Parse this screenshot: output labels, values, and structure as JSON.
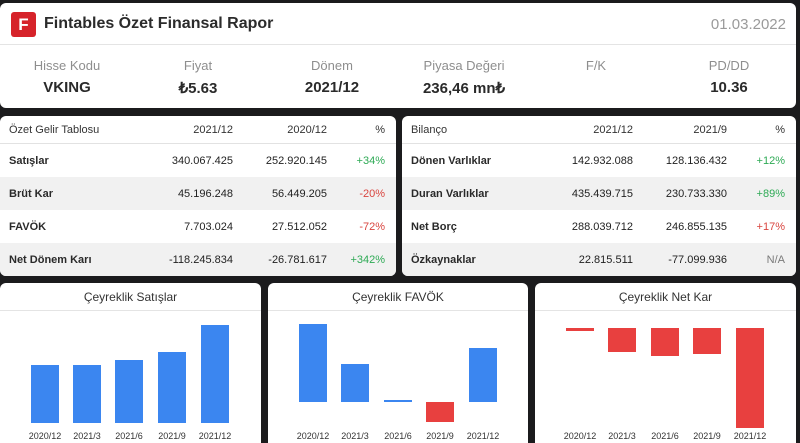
{
  "header": {
    "logo_letter": "F",
    "title": "Fintables Özet Finansal Rapor",
    "date": "01.03.2022",
    "kpis": [
      {
        "label": "Hisse Kodu",
        "value": "VKING"
      },
      {
        "label": "Fiyat",
        "value": "₺5.63"
      },
      {
        "label": "Dönem",
        "value": "2021/12"
      },
      {
        "label": "Piyasa Değeri",
        "value": "236,46 mn₺"
      },
      {
        "label": "F/K",
        "value": ""
      },
      {
        "label": "PD/DD",
        "value": "10.36"
      }
    ]
  },
  "income": {
    "headers": [
      "Özet Gelir Tablosu",
      "2021/12",
      "2020/12",
      "%"
    ],
    "rows": [
      {
        "label": "Satışlar",
        "a": "340.067.425",
        "b": "252.920.145",
        "pct": "+34%",
        "tone": "pos"
      },
      {
        "label": "Brüt Kar",
        "a": "45.196.248",
        "b": "56.449.205",
        "pct": "-20%",
        "tone": "neg"
      },
      {
        "label": "FAVÖK",
        "a": "7.703.024",
        "b": "27.512.052",
        "pct": "-72%",
        "tone": "neg"
      },
      {
        "label": "Net Dönem Karı",
        "a": "-118.245.834",
        "b": "-26.781.617",
        "pct": "+342%",
        "tone": "pos"
      }
    ]
  },
  "balance": {
    "headers": [
      "Bilanço",
      "2021/12",
      "2021/9",
      "%"
    ],
    "rows": [
      {
        "label": "Dönen Varlıklar",
        "a": "142.932.088",
        "b": "128.136.432",
        "pct": "+12%",
        "tone": "pos"
      },
      {
        "label": "Duran Varlıklar",
        "a": "435.439.715",
        "b": "230.733.330",
        "pct": "+89%",
        "tone": "pos"
      },
      {
        "label": "Net Borç",
        "a": "288.039.712",
        "b": "246.855.135",
        "pct": "+17%",
        "tone": "neg"
      },
      {
        "label": "Özkaynaklar",
        "a": "22.815.511",
        "b": "-77.099.936",
        "pct": "N/A",
        "tone": "neu"
      }
    ]
  },
  "colors": {
    "positive": "#2eaa55",
    "negative": "#d9453f",
    "bar_blue": "#3b86f0",
    "bar_red": "#e8403f"
  },
  "chart_data": [
    {
      "type": "bar",
      "title": "Çeyreklik Satışlar",
      "categories": [
        "2020/12",
        "2021/3",
        "2021/6",
        "2021/9",
        "2021/12"
      ],
      "values": [
        58,
        58,
        63,
        71,
        98
      ],
      "color": "#3b86f0"
    },
    {
      "type": "bar",
      "title": "Çeyreklik FAVÖK",
      "categories": [
        "2020/12",
        "2021/3",
        "2021/6",
        "2021/9",
        "2021/12"
      ],
      "values": [
        78,
        38,
        2,
        -20,
        54
      ],
      "color_positive": "#3b86f0",
      "color_negative": "#e8403f"
    },
    {
      "type": "bar",
      "title": "Çeyreklik Net Kar",
      "categories": [
        "2020/12",
        "2021/3",
        "2021/6",
        "2021/9",
        "2021/12"
      ],
      "values": [
        -3,
        -24,
        -28,
        -26,
        -100
      ],
      "color_positive": "#3b86f0",
      "color_negative": "#e8403f"
    }
  ]
}
